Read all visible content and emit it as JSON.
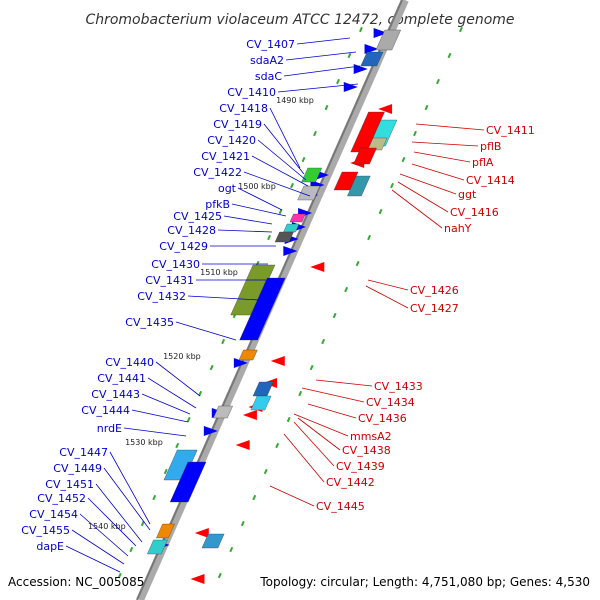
{
  "title": "Chromobacterium violaceum ATCC 12472, complete genome",
  "accession": "Accession: NC_005085",
  "summary": "Topology: circular; Length: 4,751,080 bp; Genes: 4,530",
  "ticks": [
    "1490 kbp",
    "1500 kbp",
    "1510 kbp",
    "1520 kbp",
    "1530 kbp",
    "1540 kbp"
  ],
  "left_labels": [
    "CV_1407",
    "sdaA2",
    "sdaC",
    "CV_1410",
    "CV_1418",
    "CV_1419",
    "CV_1420",
    "CV_1421",
    "CV_1422",
    "ogt",
    "pfkB",
    "CV_1425",
    "CV_1428",
    "CV_1429",
    "CV_1430",
    "CV_1431",
    "CV_1432",
    "CV_1435",
    "CV_1440",
    "CV_1441",
    "CV_1443",
    "CV_1444",
    "nrdE",
    "CV_1447",
    "CV_1449",
    "CV_1451",
    "CV_1452",
    "CV_1454",
    "CV_1455",
    "dapE"
  ],
  "right_labels": [
    "CV_1411",
    "pflB",
    "pflA",
    "CV_1414",
    "ggt",
    "CV_1416",
    "nahY",
    "CV_1426",
    "CV_1427",
    "CV_1433",
    "CV_1434",
    "CV_1436",
    "mmsA2",
    "CV_1438",
    "CV_1439",
    "CV_1442",
    "CV_1445"
  ],
  "colors": {
    "forward": "#0000ff",
    "reverse": "#ff0000",
    "leftLabel": "#0000cc",
    "rightLabel": "#cc0000",
    "axis": "#999999",
    "gc": "#33aa33"
  }
}
